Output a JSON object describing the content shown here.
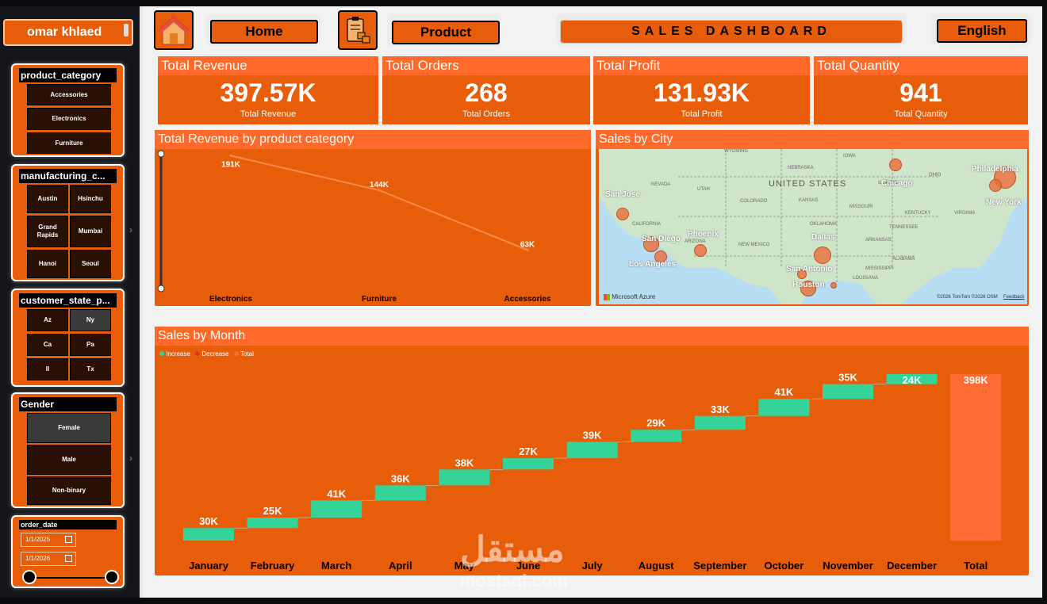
{
  "user": {
    "name": "omar khlaed"
  },
  "nav": {
    "home_label": "Home",
    "product_label": "Product",
    "language_label": "English",
    "dashboard_title": "SALES DASHBOARD"
  },
  "slicers": {
    "product_category": {
      "title": "product_category",
      "items": [
        "Accessories",
        "Electronics",
        "Furniture"
      ]
    },
    "manufacturing": {
      "title": "manufacturing_c...",
      "items": [
        "Austin",
        "Hsinchu",
        "Grand Rapids",
        "Mumbai",
        "Hanoi",
        "Seoul"
      ]
    },
    "customer_state": {
      "title": "customer_state_p...",
      "items": [
        "Az",
        "Ny",
        "Ca",
        "Pa",
        "Il",
        "Tx"
      ],
      "selected": "Ny"
    },
    "gender": {
      "title": "Gender",
      "items": [
        "Female",
        "Male",
        "Non-binary"
      ],
      "selected": "Female"
    },
    "order_date": {
      "title": "order_date",
      "start": "1/1/2025",
      "end": "1/1/2026"
    }
  },
  "kpis": [
    {
      "title": "Total Revenue",
      "value": "397.57K",
      "label": "Total Revenue"
    },
    {
      "title": "Total Orders",
      "value": "268",
      "label": "Total Orders"
    },
    {
      "title": "Total Profit",
      "value": "131.93K",
      "label": "Total Profit"
    },
    {
      "title": "Total Quantity",
      "value": "941",
      "label": "Total Quantity"
    }
  ],
  "revenue_chart": {
    "title": "Total Revenue by product category",
    "chart_data": {
      "type": "line",
      "categories": [
        "Electronics",
        "Furniture",
        "Accessories"
      ],
      "values": [
        191,
        144,
        63
      ],
      "labels": [
        "191K",
        "144K",
        "63K"
      ],
      "ylim": [
        0,
        200
      ]
    }
  },
  "map_panel": {
    "title": "Sales by City",
    "country_label": "UNITED STATES",
    "cities": [
      "San Jose",
      "San Diego",
      "Los Angeles",
      "Phoenix",
      "Dallas",
      "San Antonio",
      "Houston",
      "Chicago",
      "Philadelphia",
      "New York"
    ],
    "states": [
      "WYOMING",
      "NEBRASKA",
      "IOWA",
      "NEVADA",
      "UTAH",
      "COLORADO",
      "KANSAS",
      "MISSOURI",
      "KENTUCKY",
      "VIRGINIA",
      "CALIFORNIA",
      "OKLAHOMA",
      "TENNESSEE",
      "ARIZONA",
      "NEW MEXICO",
      "ARKANSAS",
      "ALABAMA",
      "MISSISSIPPI",
      "LOUISIANA",
      "OHIO",
      "ILLINOIS"
    ],
    "attribution": "Microsoft Azure",
    "copyright": "©2026 TomTom  ©2026 OSM",
    "feedback": "Feedback"
  },
  "month_chart": {
    "title": "Sales by Month",
    "legend": [
      {
        "name": "Increase",
        "color": "#34d399"
      },
      {
        "name": "Decrease",
        "color": "#e8321a"
      },
      {
        "name": "Total",
        "color": "#ff6a35"
      }
    ],
    "chart_data": {
      "type": "bar",
      "subtype": "waterfall",
      "categories": [
        "January",
        "February",
        "March",
        "April",
        "May",
        "June",
        "July",
        "August",
        "September",
        "October",
        "November",
        "December",
        "Total"
      ],
      "values": [
        30,
        25,
        41,
        36,
        38,
        27,
        39,
        29,
        33,
        41,
        35,
        24,
        398
      ],
      "labels": [
        "30K",
        "25K",
        "41K",
        "36K",
        "38K",
        "27K",
        "39K",
        "29K",
        "33K",
        "41K",
        "35K",
        "24K",
        "398K"
      ],
      "ylim": [
        0,
        398
      ]
    }
  },
  "watermark": {
    "arabic": "مستقل",
    "latin": "mostaqi.com"
  }
}
